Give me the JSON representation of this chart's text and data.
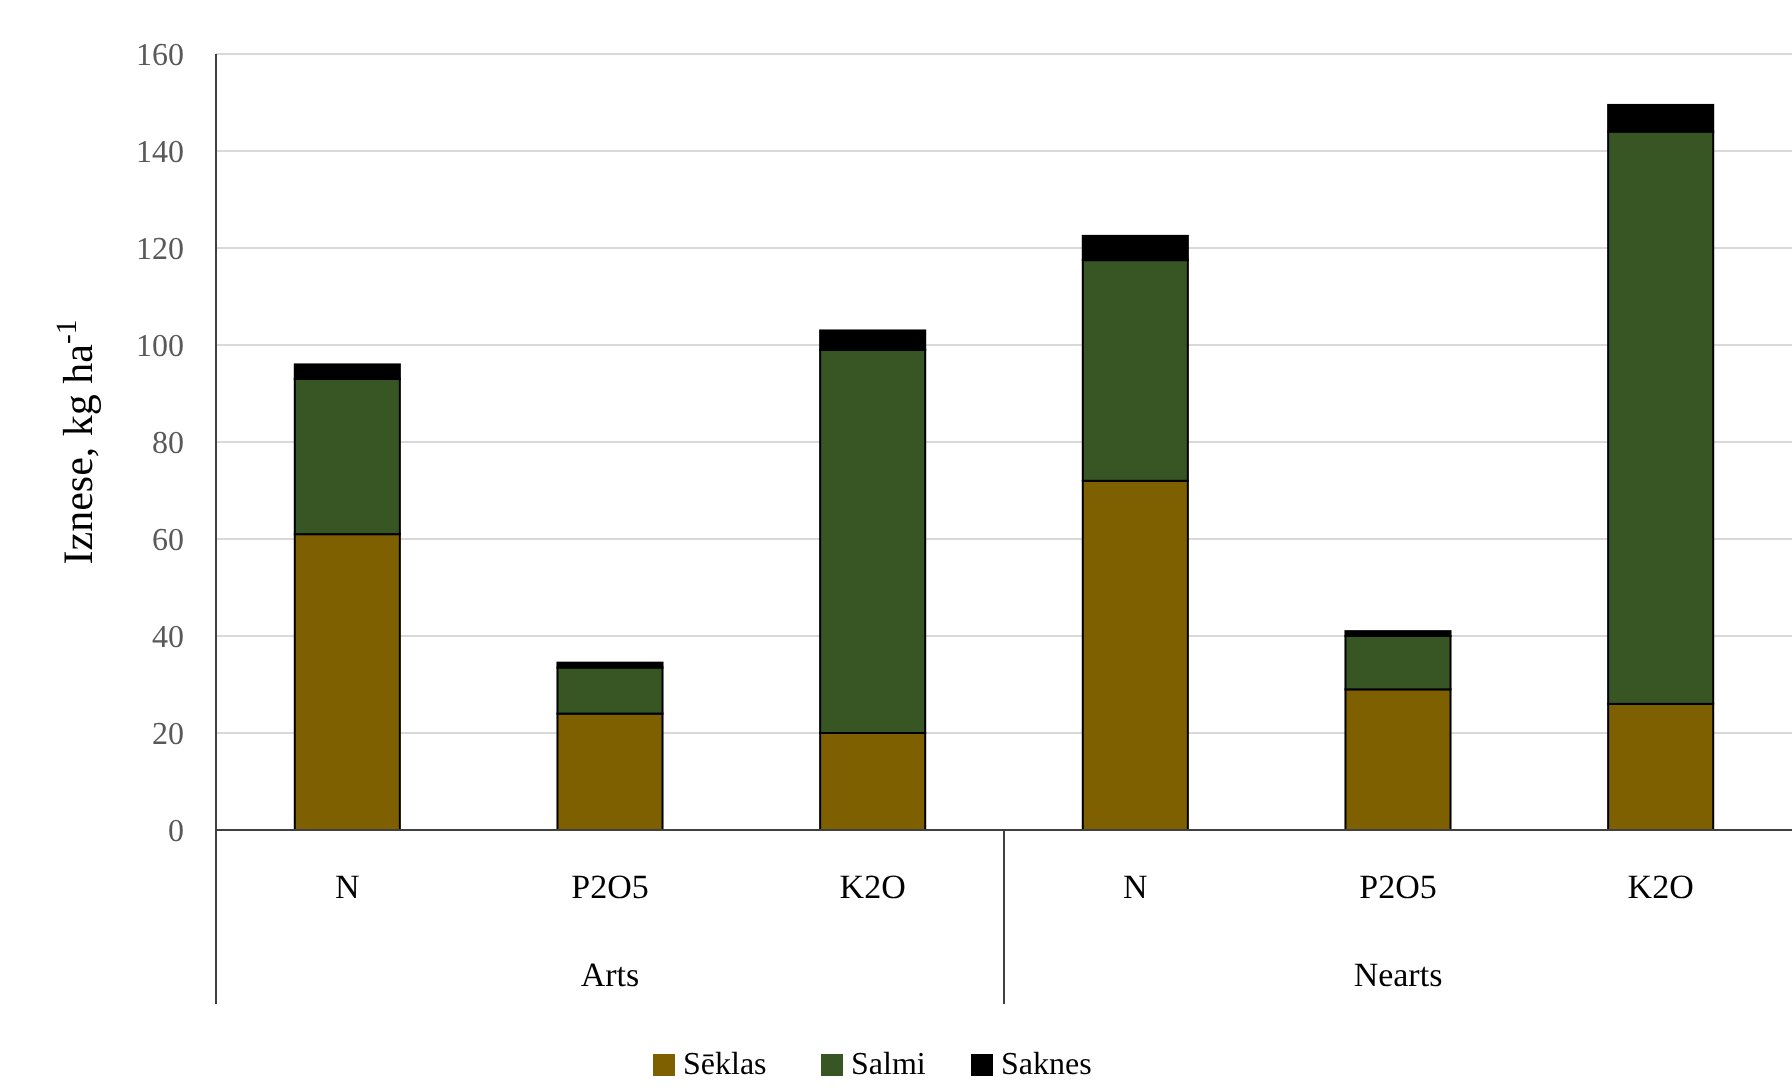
{
  "chart_data": {
    "type": "bar",
    "stacked": true,
    "ylabel": "Iznese, kg ha$^{-1}$",
    "categories": [
      "N",
      "P2O5",
      "K2O",
      "N",
      "P2O5",
      "K2O"
    ],
    "annotations": [
      "Arts",
      "Nearts"
    ],
    "series": [
      {
        "name": "Sēklas",
        "color": "#7f6000",
        "values": [
          61,
          24,
          20,
          72,
          29,
          26
        ]
      },
      {
        "name": "Salmi",
        "color": "#375623",
        "values": [
          32,
          9.5,
          79,
          45.5,
          11,
          118
        ]
      },
      {
        "name": "Saknes",
        "color": "#000000",
        "values": [
          3,
          1,
          4,
          5,
          1,
          5.5
        ]
      }
    ],
    "ylim": [
      0,
      160
    ],
    "yticks": [
      0,
      20,
      40,
      60,
      80,
      100,
      120,
      140,
      160
    ],
    "grid": "y",
    "legend": "bottom"
  }
}
